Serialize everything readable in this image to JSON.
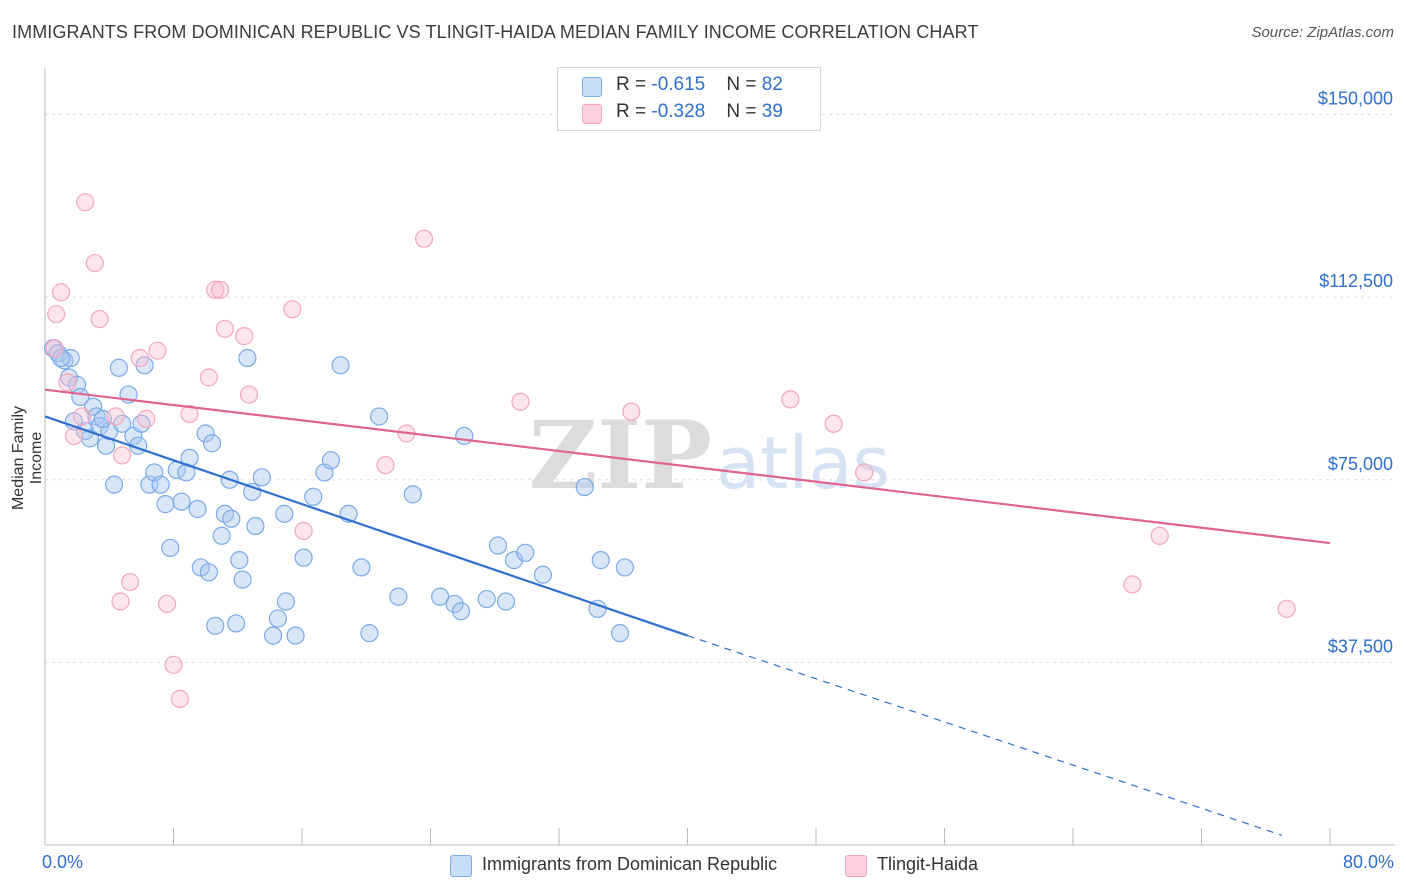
{
  "chart_data": {
    "type": "scatter",
    "title": "IMMIGRANTS FROM DOMINICAN REPUBLIC VS TLINGIT-HAIDA MEDIAN FAMILY INCOME CORRELATION CHART",
    "source": "Source: ZipAtlas.com",
    "xlabel": "",
    "ylabel": "Median Family Income",
    "xlim": [
      0,
      80
    ],
    "ylim": [
      0,
      157500
    ],
    "x_tick_labels": {
      "min": "0.0%",
      "max": "80.0%"
    },
    "y_ticks": [
      {
        "value": 37500,
        "label": "$37,500"
      },
      {
        "value": 75000,
        "label": "$75,000"
      },
      {
        "value": 112500,
        "label": "$112,500"
      },
      {
        "value": 150000,
        "label": "$150,000"
      }
    ],
    "grid": "horizontal dashed",
    "legend_position": "top-center",
    "watermark": {
      "text_bold": "ZIP",
      "text_light": "atlas"
    },
    "series": [
      {
        "name": "Immigrants from Dominican Republic",
        "color": "#7aaae8",
        "line_color": "#2f6fce",
        "r_label": "R = ",
        "r": "-0.615",
        "n_label": "N = ",
        "n": "82",
        "trend": {
          "x0": 0,
          "y0": 88000,
          "x1": 40,
          "y1": 43000,
          "dash_to_x": 77,
          "dash_to_y": 2000
        },
        "points": [
          [
            0.5,
            102000
          ],
          [
            0.8,
            101000
          ],
          [
            1.2,
            99500
          ],
          [
            1.5,
            96000
          ],
          [
            1.8,
            87000
          ],
          [
            1.6,
            100000
          ],
          [
            2.0,
            94500
          ],
          [
            2.2,
            92000
          ],
          [
            2.5,
            85000
          ],
          [
            2.8,
            83500
          ],
          [
            3.0,
            90000
          ],
          [
            3.2,
            88000
          ],
          [
            3.4,
            86000
          ],
          [
            3.8,
            82000
          ],
          [
            4.0,
            85000
          ],
          [
            4.3,
            74000
          ],
          [
            4.6,
            98000
          ],
          [
            4.8,
            86500
          ],
          [
            5.2,
            92500
          ],
          [
            5.5,
            84000
          ],
          [
            5.8,
            82000
          ],
          [
            6.0,
            86500
          ],
          [
            6.2,
            98500
          ],
          [
            6.5,
            74000
          ],
          [
            6.8,
            76500
          ],
          [
            7.2,
            74000
          ],
          [
            7.5,
            70000
          ],
          [
            7.8,
            61000
          ],
          [
            8.2,
            77000
          ],
          [
            8.5,
            70500
          ],
          [
            8.8,
            76500
          ],
          [
            9.0,
            79500
          ],
          [
            9.5,
            69000
          ],
          [
            9.7,
            57000
          ],
          [
            10.0,
            84500
          ],
          [
            10.2,
            56000
          ],
          [
            10.4,
            82500
          ],
          [
            10.6,
            45000
          ],
          [
            11.0,
            63500
          ],
          [
            11.2,
            68000
          ],
          [
            11.5,
            75000
          ],
          [
            11.6,
            67000
          ],
          [
            11.9,
            45500
          ],
          [
            12.1,
            58500
          ],
          [
            12.3,
            54500
          ],
          [
            12.6,
            100000
          ],
          [
            12.9,
            72500
          ],
          [
            13.1,
            65500
          ],
          [
            13.5,
            75500
          ],
          [
            14.2,
            43000
          ],
          [
            14.5,
            46500
          ],
          [
            14.9,
            68000
          ],
          [
            15.0,
            50000
          ],
          [
            15.6,
            43000
          ],
          [
            16.1,
            59000
          ],
          [
            16.7,
            71500
          ],
          [
            17.4,
            76500
          ],
          [
            17.8,
            79000
          ],
          [
            18.4,
            98500
          ],
          [
            18.9,
            68000
          ],
          [
            19.7,
            57000
          ],
          [
            20.2,
            43500
          ],
          [
            20.8,
            88000
          ],
          [
            22.0,
            51000
          ],
          [
            22.9,
            72000
          ],
          [
            24.6,
            51000
          ],
          [
            25.5,
            49500
          ],
          [
            25.9,
            48000
          ],
          [
            26.1,
            84000
          ],
          [
            27.5,
            50500
          ],
          [
            28.2,
            61500
          ],
          [
            28.7,
            50000
          ],
          [
            29.2,
            58500
          ],
          [
            29.9,
            60000
          ],
          [
            31.0,
            55500
          ],
          [
            33.6,
            73500
          ],
          [
            34.4,
            48500
          ],
          [
            34.6,
            58500
          ],
          [
            35.8,
            43500
          ],
          [
            36.1,
            57000
          ],
          [
            1.0,
            100000
          ],
          [
            3.6,
            87500
          ]
        ]
      },
      {
        "name": "Tlingit-Haida",
        "color": "#f4a7bf",
        "line_color": "#e0648e",
        "r_label": "R = ",
        "r": "-0.328",
        "n_label": "N = ",
        "n": "39",
        "trend": {
          "x0": 0,
          "y0": 93500,
          "x1": 80,
          "y1": 62000
        },
        "points": [
          [
            0.6,
            102000
          ],
          [
            0.7,
            109000
          ],
          [
            1.0,
            113500
          ],
          [
            1.4,
            95000
          ],
          [
            1.8,
            84000
          ],
          [
            2.3,
            88000
          ],
          [
            2.5,
            132000
          ],
          [
            3.1,
            119500
          ],
          [
            3.4,
            108000
          ],
          [
            4.4,
            88000
          ],
          [
            4.7,
            50000
          ],
          [
            4.8,
            80000
          ],
          [
            5.3,
            54000
          ],
          [
            5.9,
            100000
          ],
          [
            6.3,
            87500
          ],
          [
            7.0,
            101500
          ],
          [
            7.6,
            49500
          ],
          [
            8.0,
            37000
          ],
          [
            8.4,
            30000
          ],
          [
            9.0,
            88500
          ],
          [
            10.2,
            96000
          ],
          [
            10.6,
            114000
          ],
          [
            10.9,
            114000
          ],
          [
            11.2,
            106000
          ],
          [
            12.4,
            104500
          ],
          [
            12.7,
            92500
          ],
          [
            15.4,
            110000
          ],
          [
            16.1,
            64500
          ],
          [
            21.2,
            78000
          ],
          [
            22.5,
            84500
          ],
          [
            23.6,
            124500
          ],
          [
            29.6,
            91000
          ],
          [
            36.5,
            89000
          ],
          [
            46.4,
            91500
          ],
          [
            49.1,
            86500
          ],
          [
            51.0,
            76500
          ],
          [
            67.7,
            53500
          ],
          [
            69.4,
            63500
          ],
          [
            77.3,
            48500
          ]
        ]
      }
    ]
  }
}
